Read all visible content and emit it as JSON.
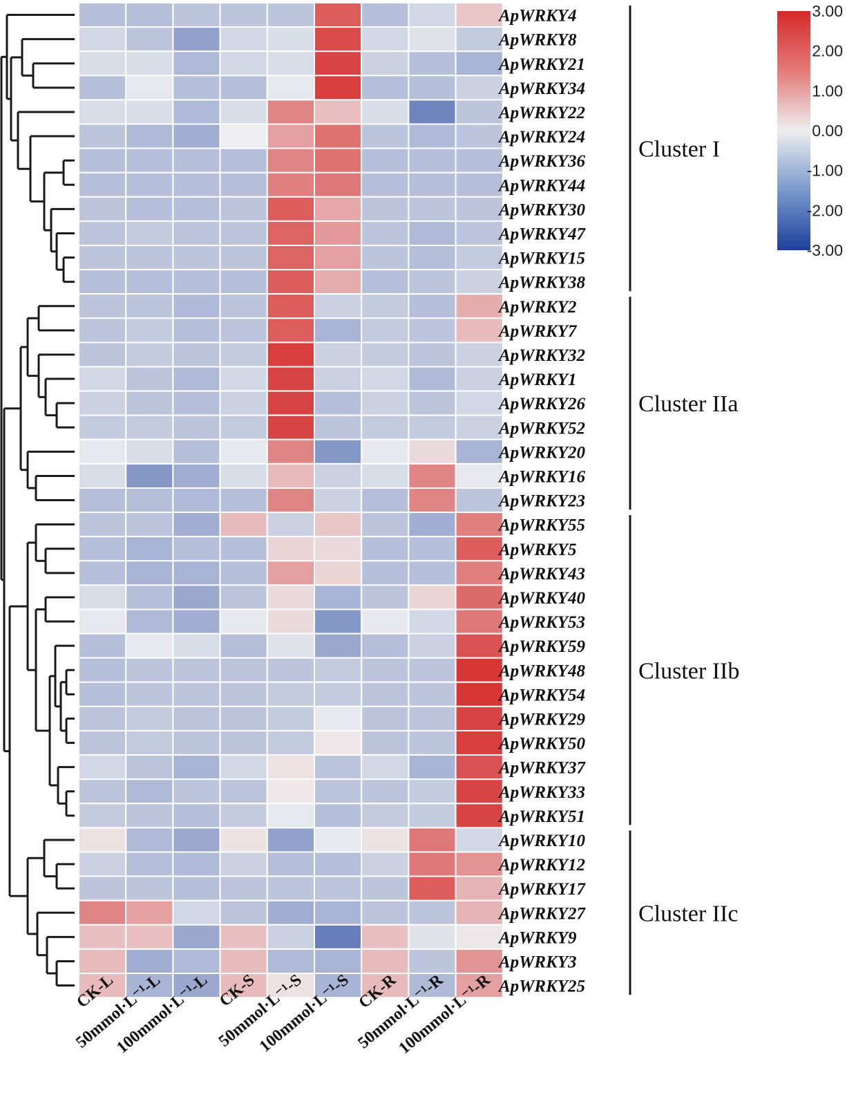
{
  "chart_data": {
    "type": "heatmap",
    "title": "",
    "color_scale": {
      "min": -3.0,
      "max": 3.0,
      "ticks": [
        "3.00",
        "2.00",
        "1.00",
        "0.00",
        "-1.00",
        "-2.00",
        "-3.00"
      ],
      "low_color": "#1c3f9c",
      "mid_color": "#eeeef0",
      "high_color": "#d42a28"
    },
    "columns": [
      "CK-L",
      "50mmol·L⁻¹-L",
      "100mmol·L⁻¹-L",
      "CK-S",
      "50mmol·L⁻¹-S",
      "100mmol·L⁻¹-S",
      "CK-R",
      "50mmol·L⁻¹-R",
      "100mmol·L⁻¹-R"
    ],
    "rows": [
      "ApWRKY4",
      "ApWRKY8",
      "ApWRKY21",
      "ApWRKY34",
      "ApWRKY22",
      "ApWRKY24",
      "ApWRKY36",
      "ApWRKY44",
      "ApWRKY30",
      "ApWRKY47",
      "ApWRKY15",
      "ApWRKY38",
      "ApWRKY2",
      "ApWRKY7",
      "ApWRKY32",
      "ApWRKY1",
      "ApWRKY26",
      "ApWRKY52",
      "ApWRKY20",
      "ApWRKY16",
      "ApWRKY23",
      "ApWRKY55",
      "ApWRKY5",
      "ApWRKY43",
      "ApWRKY40",
      "ApWRKY53",
      "ApWRKY59",
      "ApWRKY48",
      "ApWRKY54",
      "ApWRKY29",
      "ApWRKY50",
      "ApWRKY37",
      "ApWRKY33",
      "ApWRKY51",
      "ApWRKY10",
      "ApWRKY12",
      "ApWRKY17",
      "ApWRKY27",
      "ApWRKY9",
      "ApWRKY3",
      "ApWRKY25"
    ],
    "values": [
      [
        -0.8,
        -0.8,
        -0.7,
        -0.7,
        -0.7,
        2.2,
        -0.8,
        -0.4,
        0.6
      ],
      [
        -0.4,
        -0.7,
        -1.3,
        -0.4,
        -0.3,
        2.5,
        -0.4,
        -0.2,
        -0.6
      ],
      [
        -0.3,
        -0.3,
        -0.9,
        -0.4,
        -0.3,
        2.6,
        -0.5,
        -0.8,
        -1.0
      ],
      [
        -0.8,
        -0.1,
        -0.8,
        -0.8,
        -0.1,
        2.7,
        -0.8,
        -0.8,
        -0.5
      ],
      [
        -0.3,
        -0.3,
        -0.9,
        -0.3,
        1.6,
        0.7,
        -0.3,
        -1.8,
        -0.7
      ],
      [
        -0.7,
        -0.9,
        -1.1,
        0.0,
        1.2,
        1.9,
        -0.7,
        -0.9,
        -0.7
      ],
      [
        -0.8,
        -0.8,
        -0.8,
        -0.8,
        1.6,
        1.9,
        -0.8,
        -0.8,
        -0.8
      ],
      [
        -0.8,
        -0.8,
        -0.8,
        -0.8,
        1.7,
        1.8,
        -0.8,
        -0.8,
        -0.8
      ],
      [
        -0.7,
        -0.8,
        -0.8,
        -0.7,
        2.2,
        1.1,
        -0.7,
        -0.7,
        -0.7
      ],
      [
        -0.7,
        -0.6,
        -0.7,
        -0.7,
        2.1,
        1.3,
        -0.7,
        -0.9,
        -0.7
      ],
      [
        -0.7,
        -0.7,
        -0.7,
        -0.7,
        2.1,
        1.2,
        -0.7,
        -0.8,
        -0.6
      ],
      [
        -0.8,
        -0.8,
        -0.8,
        -0.8,
        2.2,
        1.0,
        -0.8,
        -0.7,
        -0.5
      ],
      [
        -0.7,
        -0.7,
        -0.9,
        -0.7,
        2.2,
        -0.5,
        -0.6,
        -0.8,
        1.0
      ],
      [
        -0.7,
        -0.6,
        -0.8,
        -0.7,
        2.2,
        -1.0,
        -0.6,
        -0.7,
        0.8
      ],
      [
        -0.7,
        -0.6,
        -0.7,
        -0.6,
        2.7,
        -0.5,
        -0.6,
        -0.7,
        -0.5
      ],
      [
        -0.4,
        -0.7,
        -0.9,
        -0.4,
        2.6,
        -0.5,
        -0.4,
        -0.9,
        -0.5
      ],
      [
        -0.5,
        -0.7,
        -0.8,
        -0.5,
        2.6,
        -0.8,
        -0.5,
        -0.7,
        -0.4
      ],
      [
        -0.6,
        -0.6,
        -0.7,
        -0.6,
        2.6,
        -0.7,
        -0.6,
        -0.6,
        -0.5
      ],
      [
        -0.1,
        -0.3,
        -0.8,
        -0.1,
        1.6,
        -1.5,
        -0.1,
        0.3,
        -1.0
      ],
      [
        -0.3,
        -1.5,
        -1.1,
        -0.3,
        0.8,
        -0.5,
        -0.3,
        1.6,
        -0.1
      ],
      [
        -0.8,
        -0.8,
        -0.9,
        -0.8,
        1.6,
        -0.5,
        -0.8,
        1.6,
        -0.7
      ],
      [
        -0.7,
        -0.7,
        -1.1,
        0.8,
        -0.5,
        0.6,
        -0.7,
        -1.1,
        1.7
      ],
      [
        -0.8,
        -1.0,
        -0.8,
        -0.8,
        0.4,
        0.3,
        -0.8,
        -0.8,
        2.2
      ],
      [
        -0.8,
        -1.0,
        -1.0,
        -0.8,
        1.2,
        0.4,
        -0.8,
        -0.8,
        1.7
      ],
      [
        -0.3,
        -0.8,
        -1.2,
        -0.7,
        0.3,
        -1.0,
        -0.7,
        0.4,
        2.0
      ],
      [
        -0.1,
        -0.9,
        -1.1,
        -0.1,
        0.3,
        -1.5,
        -0.1,
        -0.4,
        1.8
      ],
      [
        -0.8,
        -0.1,
        -0.3,
        -0.8,
        -0.2,
        -1.2,
        -0.8,
        -0.5,
        2.4
      ],
      [
        -0.8,
        -0.7,
        -0.7,
        -0.7,
        -0.7,
        -0.6,
        -0.7,
        -0.7,
        2.8
      ],
      [
        -0.8,
        -0.7,
        -0.7,
        -0.7,
        -0.6,
        -0.6,
        -0.7,
        -0.7,
        2.8
      ],
      [
        -0.7,
        -0.6,
        -0.7,
        -0.7,
        -0.6,
        -0.1,
        -0.7,
        -0.7,
        2.6
      ],
      [
        -0.7,
        -0.6,
        -0.7,
        -0.7,
        -0.6,
        0.1,
        -0.7,
        -0.7,
        2.7
      ],
      [
        -0.4,
        -0.7,
        -1.0,
        -0.4,
        0.2,
        -0.7,
        -0.4,
        -1.0,
        2.4
      ],
      [
        -0.7,
        -0.9,
        -0.7,
        -0.7,
        0.1,
        -0.7,
        -0.7,
        -0.6,
        2.6
      ],
      [
        -0.6,
        -0.7,
        -0.8,
        -0.6,
        -0.1,
        -0.8,
        -0.6,
        -0.6,
        2.6
      ],
      [
        0.2,
        -0.9,
        -1.2,
        0.2,
        -1.3,
        -0.1,
        0.2,
        1.8,
        -0.4
      ],
      [
        -0.5,
        -0.8,
        -0.9,
        -0.5,
        -0.8,
        -0.8,
        -0.5,
        1.8,
        1.4
      ],
      [
        -0.7,
        -0.7,
        -0.8,
        -0.7,
        -0.7,
        -0.7,
        -0.7,
        2.2,
        0.9
      ],
      [
        1.6,
        1.2,
        -0.4,
        -0.7,
        -1.1,
        -1.0,
        -0.7,
        -0.7,
        0.9
      ],
      [
        0.7,
        0.7,
        -1.2,
        0.7,
        -0.5,
        -1.9,
        0.7,
        -0.2,
        0.1
      ],
      [
        0.8,
        -1.1,
        -0.9,
        0.8,
        -0.9,
        -1.0,
        0.8,
        -0.7,
        1.4
      ],
      [
        0.8,
        -1.0,
        -1.2,
        0.8,
        0.2,
        -1.0,
        0.8,
        -0.9,
        1.2
      ]
    ],
    "clusters": [
      {
        "label": "Cluster I",
        "start": 0,
        "end": 11
      },
      {
        "label": "Cluster IIa",
        "start": 12,
        "end": 20
      },
      {
        "label": "Cluster IIb",
        "start": 21,
        "end": 33
      },
      {
        "label": "Cluster IIc",
        "start": 34,
        "end": 40
      }
    ]
  }
}
